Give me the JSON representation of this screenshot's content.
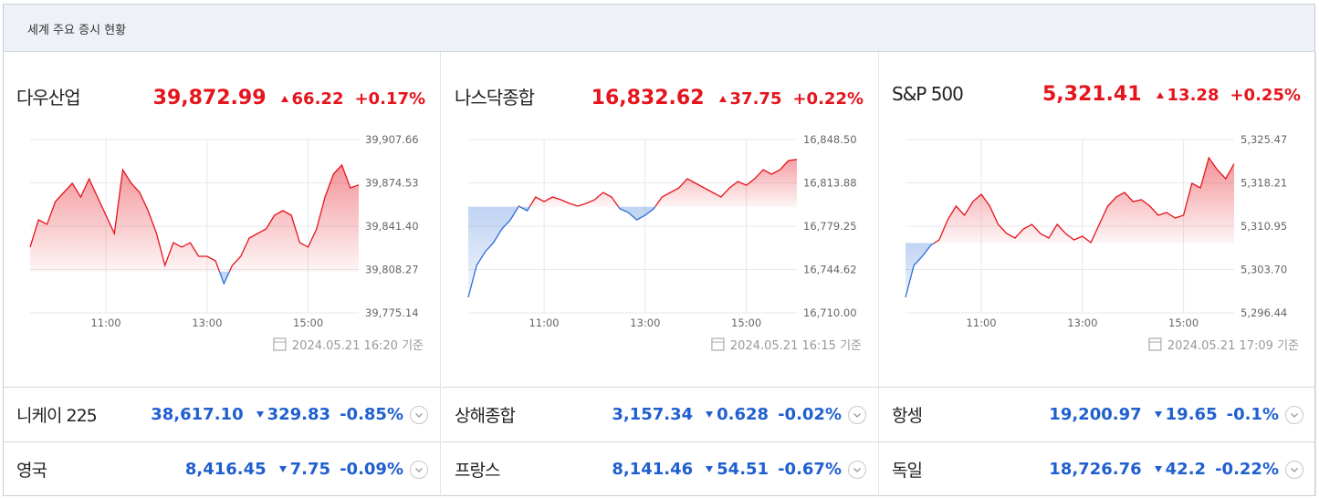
{
  "header": {
    "title": "세계 주요 증시 현황"
  },
  "chart_data": [
    {
      "type": "line",
      "title": "다우산업",
      "price": "39,872.99",
      "change": "66.22",
      "pct": "+0.17%",
      "direction": "up",
      "up_color": "#e5141d",
      "down_color": "#2c6dd6",
      "categories": [
        null,
        null,
        null,
        null,
        null,
        null,
        null,
        null,
        null,
        "11:00",
        null,
        null,
        null,
        null,
        null,
        null,
        null,
        null,
        null,
        null,
        null,
        "13:00",
        null,
        null,
        null,
        null,
        null,
        null,
        null,
        null,
        null,
        null,
        null,
        "15:00",
        null,
        null,
        null,
        null,
        null,
        null
      ],
      "values": [
        39825.4,
        39846.3,
        39842.8,
        39860.2,
        39867.2,
        39874.2,
        39863.7,
        39877.7,
        39863.7,
        39849.8,
        39835.8,
        39884.6,
        39874.2,
        39867.2,
        39853.3,
        39835.8,
        39811.4,
        39828.8,
        39825.4,
        39828.8,
        39818.4,
        39818.4,
        39814.9,
        39797.5,
        39811.4,
        39818.4,
        39832.3,
        39835.8,
        39839.3,
        39849.8,
        39853.3,
        39849.8,
        39828.8,
        39825.4,
        39839.3,
        39863.7,
        39881.2,
        39888.1,
        39870.7,
        39873.0
      ],
      "ylim": [
        39775.14,
        39907.66
      ],
      "yticks": [
        {
          "value": 39907.66,
          "label": "39,907.66"
        },
        {
          "value": 39874.53,
          "label": "39,874.53"
        },
        {
          "value": 39841.4,
          "label": "39,841.40"
        },
        {
          "value": 39808.27,
          "label": "39,808.27"
        },
        {
          "value": 39775.14,
          "label": "39,775.14"
        }
      ],
      "grid": true,
      "timestamp": "2024.05.21 16:20 기준"
    },
    {
      "type": "line",
      "title": "나스닥종합",
      "price": "16,832.62",
      "change": "37.75",
      "pct": "+0.22%",
      "direction": "up",
      "up_color": "#e5141d",
      "down_color": "#2c6dd6",
      "categories": [
        null,
        null,
        null,
        null,
        null,
        null,
        null,
        null,
        null,
        "11:00",
        null,
        null,
        null,
        null,
        null,
        null,
        null,
        null,
        null,
        null,
        null,
        "13:00",
        null,
        null,
        null,
        null,
        null,
        null,
        null,
        null,
        null,
        null,
        null,
        "15:00",
        null,
        null,
        null,
        null,
        null,
        null
      ],
      "values": [
        16722.4,
        16747.9,
        16758.8,
        16766.1,
        16777.1,
        16784.3,
        16795.3,
        16791.6,
        16802.6,
        16798.9,
        16802.6,
        16800.4,
        16797.5,
        16795.3,
        16797.5,
        16800.4,
        16806.2,
        16802.6,
        16793.1,
        16790.2,
        16784.3,
        16788.0,
        16793.1,
        16802.6,
        16806.2,
        16809.9,
        16817.2,
        16813.5,
        16809.9,
        16806.2,
        16802.6,
        16809.9,
        16815.0,
        16812.0,
        16817.2,
        16824.4,
        16820.8,
        16824.4,
        16831.7,
        16832.6
      ],
      "ylim": [
        16710.0,
        16848.5
      ],
      "yticks": [
        {
          "value": 16848.5,
          "label": "16,848.50"
        },
        {
          "value": 16813.88,
          "label": "16,813.88"
        },
        {
          "value": 16779.25,
          "label": "16,779.25"
        },
        {
          "value": 16744.62,
          "label": "16,744.62"
        },
        {
          "value": 16710.0,
          "label": "16,710.00"
        }
      ],
      "grid": true,
      "timestamp": "2024.05.21 16:15 기준"
    },
    {
      "type": "line",
      "title": "S&P 500",
      "price": "5,321.41",
      "change": "13.28",
      "pct": "+0.25%",
      "direction": "up",
      "up_color": "#e5141d",
      "down_color": "#2c6dd6",
      "categories": [
        null,
        null,
        null,
        null,
        null,
        null,
        null,
        null,
        null,
        "11:00",
        null,
        null,
        null,
        null,
        null,
        null,
        null,
        null,
        null,
        null,
        null,
        "13:00",
        null,
        null,
        null,
        null,
        null,
        null,
        null,
        null,
        null,
        null,
        null,
        "15:00",
        null,
        null,
        null,
        null,
        null,
        null
      ],
      "values": [
        5299.04,
        5304.38,
        5305.91,
        5307.75,
        5308.66,
        5312.02,
        5314.32,
        5312.79,
        5315.08,
        5316.3,
        5314.32,
        5311.26,
        5309.73,
        5308.97,
        5310.5,
        5311.26,
        5309.73,
        5308.97,
        5311.26,
        5309.73,
        5308.66,
        5309.27,
        5308.2,
        5311.26,
        5314.32,
        5315.84,
        5316.61,
        5315.08,
        5315.39,
        5314.32,
        5312.79,
        5313.25,
        5312.33,
        5312.79,
        5318.14,
        5317.37,
        5322.41,
        5320.43,
        5318.9,
        5321.4
      ],
      "ylim": [
        5296.44,
        5325.47
      ],
      "yticks": [
        {
          "value": 5325.47,
          "label": "5,325.47"
        },
        {
          "value": 5318.21,
          "label": "5,318.21"
        },
        {
          "value": 5310.95,
          "label": "5,310.95"
        },
        {
          "value": 5303.7,
          "label": "5,303.70"
        },
        {
          "value": 5296.44,
          "label": "5,296.44"
        }
      ],
      "grid": true,
      "timestamp": "2024.05.21 17:09 기준"
    }
  ],
  "indices": [
    [
      {
        "name": "니케이 225",
        "price": "38,617.10",
        "change": "329.83",
        "pct": "-0.85%",
        "direction": "down"
      },
      {
        "name": "상해종합",
        "price": "3,157.34",
        "change": "0.628",
        "pct": "-0.02%",
        "direction": "down"
      },
      {
        "name": "항셍",
        "price": "19,200.97",
        "change": "19.65",
        "pct": "-0.1%",
        "direction": "down"
      }
    ],
    [
      {
        "name": "영국",
        "price": "8,416.45",
        "change": "7.75",
        "pct": "-0.09%",
        "direction": "down"
      },
      {
        "name": "프랑스",
        "price": "8,141.46",
        "change": "54.51",
        "pct": "-0.67%",
        "direction": "down"
      },
      {
        "name": "독일",
        "price": "18,726.76",
        "change": "42.2",
        "pct": "-0.22%",
        "direction": "down"
      }
    ]
  ]
}
